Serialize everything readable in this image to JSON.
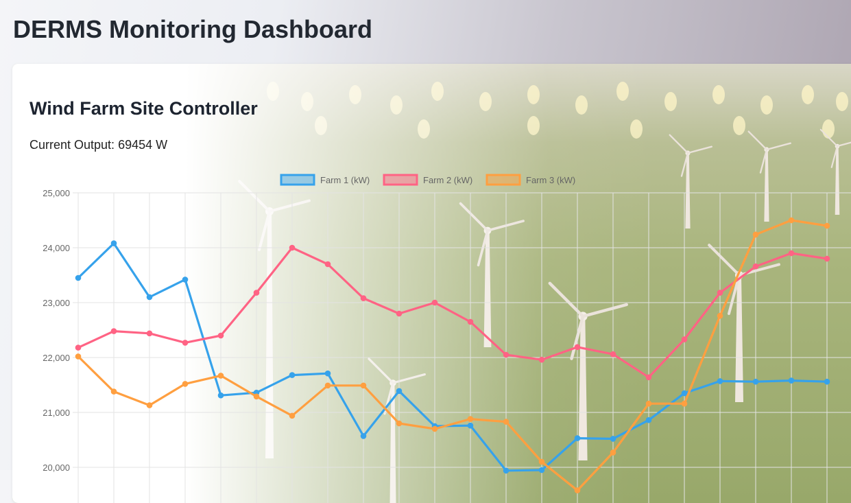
{
  "dashboard": {
    "title": "DERMS Monitoring Dashboard"
  },
  "card": {
    "title": "Wind Farm Site Controller",
    "output_label": "Current Output:",
    "output_value": "69454",
    "output_unit": "W"
  },
  "colors": {
    "farm1": "#36a2eb",
    "farm2": "#ff6384",
    "farm3": "#ff9f40",
    "grid": "#e3e3e3",
    "tick_text": "#666666"
  },
  "background_image": "wind-turbines-scene",
  "chart_data": {
    "type": "line",
    "title": "",
    "xlabel": "",
    "ylabel": "",
    "ylim": [
      20000,
      25000
    ],
    "yticks": [
      20000,
      21000,
      22000,
      23000,
      24000,
      25000
    ],
    "ytick_labels": [
      "20,000",
      "21,000",
      "22,000",
      "23,000",
      "24,000",
      "25,000"
    ],
    "grid": true,
    "legend_position": "top",
    "x": [
      1,
      2,
      3,
      4,
      5,
      6,
      7,
      8,
      9,
      10,
      11,
      12,
      13,
      14,
      15,
      16,
      17,
      18,
      19,
      20,
      21,
      22
    ],
    "series": [
      {
        "name": "Farm 1 (kW)",
        "color": "#36a2eb",
        "values": [
          23450,
          24080,
          23100,
          23420,
          21310,
          21360,
          21680,
          21710,
          20570,
          21390,
          20750,
          20760,
          19940,
          19950,
          20530,
          20520,
          20860,
          21350,
          21570,
          21560,
          21580,
          21560
        ]
      },
      {
        "name": "Farm 2 (kW)",
        "color": "#ff6384",
        "values": [
          22180,
          22480,
          22440,
          22270,
          22400,
          23180,
          24000,
          23700,
          23080,
          22800,
          23000,
          22650,
          22050,
          21960,
          22190,
          22060,
          21640,
          22330,
          23180,
          23660,
          23900,
          23800
        ]
      },
      {
        "name": "Farm 3 (kW)",
        "color": "#ff9f40",
        "values": [
          22020,
          21380,
          21130,
          21520,
          21670,
          21290,
          20940,
          21490,
          21490,
          20800,
          20700,
          20880,
          20830,
          20100,
          19580,
          20270,
          21160,
          21160,
          22760,
          24240,
          24500,
          24400
        ]
      }
    ]
  }
}
